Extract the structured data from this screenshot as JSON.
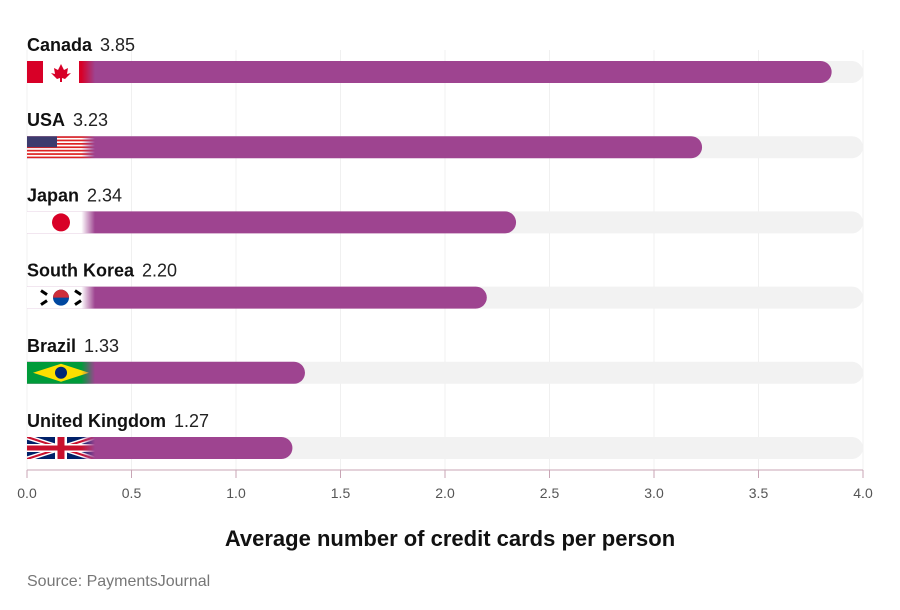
{
  "chart_data": {
    "type": "bar",
    "orientation": "horizontal",
    "categories": [
      "Canada",
      "USA",
      "Japan",
      "South Korea",
      "Brazil",
      "United Kingdom"
    ],
    "values": [
      3.85,
      3.23,
      2.34,
      2.2,
      1.33,
      1.27
    ],
    "value_labels": [
      "3.85",
      "3.23",
      "2.34",
      "2.20",
      "1.33",
      "1.27"
    ],
    "flag_icons": [
      "canada-flag-icon",
      "usa-flag-icon",
      "japan-flag-icon",
      "south-korea-flag-icon",
      "brazil-flag-icon",
      "uk-flag-icon"
    ],
    "xlabel": "Average number of credit cards per person",
    "xlim": [
      0,
      4
    ],
    "xticks": [
      "0.0",
      "0.5",
      "1.0",
      "1.5",
      "2.0",
      "2.5",
      "3.0",
      "3.5",
      "4.0"
    ],
    "grid": true,
    "colors": {
      "bar": "#9e4490",
      "track": "#f2f2f2",
      "axis": "#c8a5b5"
    }
  },
  "source": "Source: PaymentsJournal"
}
